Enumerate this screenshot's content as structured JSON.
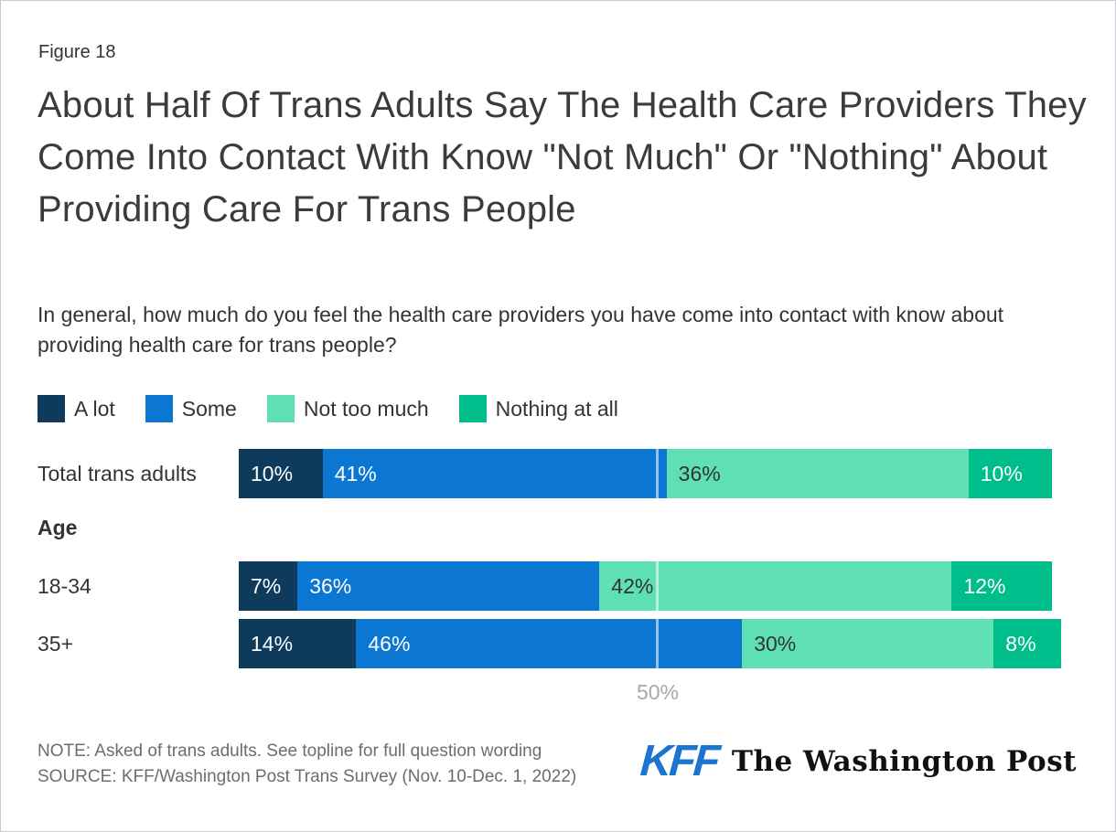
{
  "figure_label": "Figure 18",
  "title": "About Half Of Trans Adults Say The Health Care Providers They Come Into Contact With Know \"Not Much\" Or \"Nothing\" About Providing Care For Trans People",
  "subtitle": "In general, how much do you feel the health care providers you have come into contact with know about providing health care for trans people?",
  "chart_data": {
    "type": "bar",
    "orientation": "horizontal-stacked",
    "categories": [
      "Total trans adults",
      "18-34",
      "35+"
    ],
    "group_label": "Age",
    "series": [
      {
        "name": "A lot",
        "color": "#0e3a5c",
        "label_color": "#ffffff",
        "values": [
          10,
          7,
          14
        ]
      },
      {
        "name": "Some",
        "color": "#0b77d2",
        "label_color": "#ffffff",
        "values": [
          41,
          36,
          46
        ]
      },
      {
        "name": "Not too much",
        "color": "#5fe0b2",
        "label_color": "#333333",
        "values": [
          36,
          42,
          30
        ]
      },
      {
        "name": "Nothing at all",
        "color": "#00bd8c",
        "label_color": "#ffffff",
        "values": [
          10,
          12,
          8
        ]
      }
    ],
    "value_suffix": "%",
    "x_axis": {
      "range": [
        0,
        100
      ],
      "tick_label": "50%",
      "tick_position": 50,
      "gridline_at": 50
    },
    "legend_position": "top"
  },
  "note": "NOTE: Asked of trans adults. See topline for full question wording",
  "source": "SOURCE: KFF/Washington Post Trans Survey (Nov. 10-Dec. 1, 2022)",
  "logos": {
    "kff": "KFF",
    "washington_post": "The Washington Post",
    "kff_color": "#1b74cf"
  },
  "colors": {
    "title": "#3b3b3b",
    "body_text": "#333333",
    "note_text": "#6d6d6d",
    "axis_label": "#a8a8a8"
  }
}
